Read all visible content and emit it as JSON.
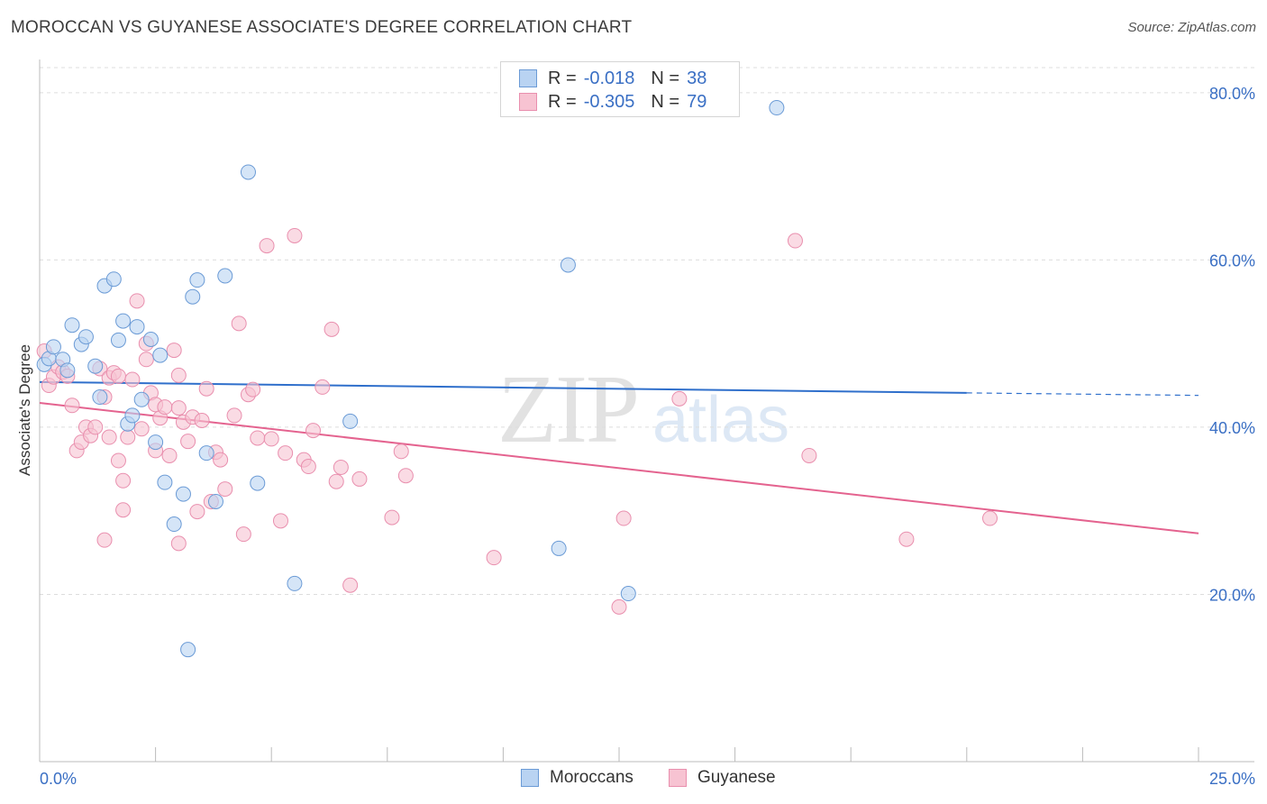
{
  "header": {
    "title": "MOROCCAN VS GUYANESE ASSOCIATE'S DEGREE CORRELATION CHART",
    "source": "Source: ZipAtlas.com"
  },
  "watermark": {
    "zip": "ZIP",
    "atlas": "atlas"
  },
  "legend": {
    "rows": [
      {
        "r_label": "R =",
        "r_value": "-0.018",
        "n_label": "N =",
        "n_value": "38"
      },
      {
        "r_label": "R =",
        "r_value": "-0.305",
        "n_label": "N =",
        "n_value": "79"
      }
    ]
  },
  "bottom_legend": {
    "moroccans": "Moroccans",
    "guyanese": "Guyanese"
  },
  "colors": {
    "blue_fill": "#b9d3f2",
    "blue_stroke": "#6b9bd6",
    "blue_line": "#2f6fcb",
    "pink_fill": "#f7c3d2",
    "pink_stroke": "#e98fae",
    "pink_line": "#e4638f",
    "tick_text": "#3a6fc4",
    "grid": "#dddddd"
  },
  "chart_data": {
    "type": "scatter",
    "title": "MOROCCAN VS GUYANESE ASSOCIATE'S DEGREE CORRELATION CHART",
    "xlabel": "",
    "ylabel": "Associate's Degree",
    "xlim": [
      0,
      25
    ],
    "ylim": [
      0,
      83
    ],
    "x_tick_labels": [
      "0.0%",
      "25.0%"
    ],
    "y_ticks": [
      20,
      40,
      60,
      80
    ],
    "y_tick_labels": [
      "20.0%",
      "40.0%",
      "60.0%",
      "80.0%"
    ],
    "grid": true,
    "series": [
      {
        "name": "Moroccans",
        "r": -0.018,
        "n": 38,
        "trend": {
          "x_start": 0,
          "y_start": 45.4,
          "x_solid_end": 20,
          "y_solid_end": 44.1,
          "x_end": 25,
          "y_end": 43.8
        },
        "points": [
          [
            0.1,
            47.5
          ],
          [
            0.2,
            48.2
          ],
          [
            0.3,
            49.6
          ],
          [
            0.5,
            48.1
          ],
          [
            0.6,
            46.8
          ],
          [
            0.7,
            52.2
          ],
          [
            0.9,
            49.9
          ],
          [
            1.0,
            50.8
          ],
          [
            1.2,
            47.3
          ],
          [
            1.3,
            43.6
          ],
          [
            1.4,
            56.9
          ],
          [
            1.6,
            57.7
          ],
          [
            1.7,
            50.4
          ],
          [
            1.8,
            52.7
          ],
          [
            1.9,
            40.4
          ],
          [
            2.0,
            41.4
          ],
          [
            2.1,
            52.0
          ],
          [
            2.2,
            43.3
          ],
          [
            2.4,
            50.5
          ],
          [
            2.5,
            38.2
          ],
          [
            2.6,
            48.6
          ],
          [
            2.7,
            33.4
          ],
          [
            2.9,
            28.4
          ],
          [
            3.1,
            32.0
          ],
          [
            3.2,
            13.4
          ],
          [
            3.3,
            55.6
          ],
          [
            3.4,
            57.6
          ],
          [
            3.6,
            36.9
          ],
          [
            3.8,
            31.1
          ],
          [
            4.0,
            58.1
          ],
          [
            4.5,
            70.5
          ],
          [
            4.7,
            33.3
          ],
          [
            5.5,
            21.3
          ],
          [
            6.7,
            40.7
          ],
          [
            11.4,
            59.4
          ],
          [
            11.2,
            25.5
          ],
          [
            12.7,
            20.1
          ],
          [
            15.9,
            78.2
          ]
        ]
      },
      {
        "name": "Guyanese",
        "r": -0.305,
        "n": 79,
        "trend": {
          "x_start": 0,
          "y_start": 42.9,
          "x_end": 25,
          "y_end": 27.3
        },
        "points": [
          [
            0.1,
            49.1
          ],
          [
            0.2,
            45.0
          ],
          [
            0.3,
            46.0
          ],
          [
            0.4,
            47.2
          ],
          [
            0.5,
            46.6
          ],
          [
            0.6,
            46.1
          ],
          [
            0.7,
            42.6
          ],
          [
            0.8,
            37.2
          ],
          [
            0.9,
            38.2
          ],
          [
            1.0,
            40.0
          ],
          [
            1.1,
            39.0
          ],
          [
            1.2,
            40.0
          ],
          [
            1.3,
            47.0
          ],
          [
            1.4,
            43.6
          ],
          [
            1.5,
            38.8
          ],
          [
            1.5,
            45.9
          ],
          [
            1.6,
            46.5
          ],
          [
            1.7,
            46.1
          ],
          [
            1.7,
            36.0
          ],
          [
            1.8,
            33.6
          ],
          [
            1.8,
            30.1
          ],
          [
            1.9,
            38.8
          ],
          [
            2.0,
            45.7
          ],
          [
            2.1,
            55.1
          ],
          [
            2.2,
            39.8
          ],
          [
            2.3,
            50.0
          ],
          [
            2.3,
            48.1
          ],
          [
            2.4,
            44.1
          ],
          [
            2.5,
            37.2
          ],
          [
            2.5,
            42.7
          ],
          [
            2.6,
            41.1
          ],
          [
            2.7,
            42.4
          ],
          [
            2.8,
            36.6
          ],
          [
            2.9,
            49.2
          ],
          [
            3.0,
            46.2
          ],
          [
            3.0,
            42.3
          ],
          [
            3.1,
            40.6
          ],
          [
            3.2,
            38.3
          ],
          [
            3.3,
            41.2
          ],
          [
            3.4,
            29.9
          ],
          [
            3.5,
            40.8
          ],
          [
            3.6,
            44.6
          ],
          [
            3.7,
            31.1
          ],
          [
            3.8,
            37.0
          ],
          [
            3.9,
            36.1
          ],
          [
            4.0,
            32.6
          ],
          [
            4.2,
            41.4
          ],
          [
            4.3,
            52.4
          ],
          [
            4.4,
            27.2
          ],
          [
            4.5,
            43.9
          ],
          [
            4.6,
            44.5
          ],
          [
            4.7,
            38.7
          ],
          [
            5.0,
            38.6
          ],
          [
            5.2,
            28.8
          ],
          [
            5.3,
            36.9
          ],
          [
            5.5,
            62.9
          ],
          [
            5.7,
            36.1
          ],
          [
            5.8,
            35.3
          ],
          [
            5.9,
            39.6
          ],
          [
            6.1,
            44.8
          ],
          [
            6.3,
            51.7
          ],
          [
            6.4,
            33.5
          ],
          [
            6.5,
            35.2
          ],
          [
            6.7,
            21.1
          ],
          [
            6.9,
            33.8
          ],
          [
            7.6,
            29.2
          ],
          [
            7.8,
            37.1
          ],
          [
            7.9,
            34.2
          ],
          [
            9.8,
            24.4
          ],
          [
            12.5,
            18.5
          ],
          [
            12.6,
            29.1
          ],
          [
            13.8,
            43.4
          ],
          [
            16.3,
            62.3
          ],
          [
            16.6,
            36.6
          ],
          [
            18.7,
            26.6
          ],
          [
            20.5,
            29.1
          ],
          [
            1.4,
            26.5
          ],
          [
            3.0,
            26.1
          ],
          [
            4.9,
            61.7
          ]
        ]
      }
    ]
  }
}
